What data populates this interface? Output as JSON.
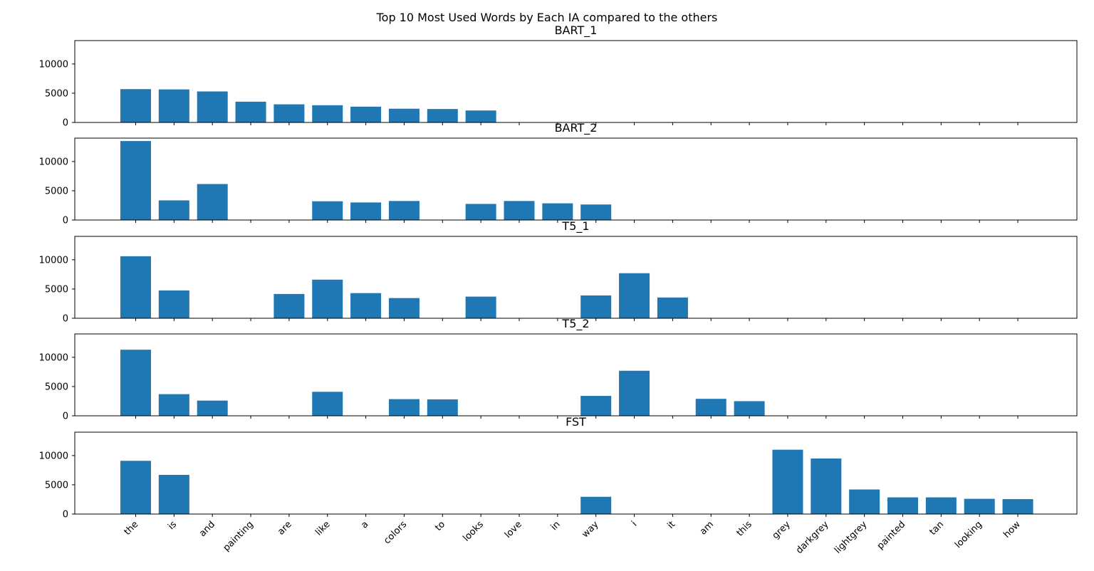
{
  "chart_data": {
    "type": "bar",
    "title": "Top 10 Most Used Words by Each IA compared to the others",
    "categories": [
      "the",
      "is",
      "and",
      "painting",
      "are",
      "like",
      "a",
      "colors",
      "to",
      "looks",
      "love",
      "in",
      "way",
      "i",
      "it",
      "am",
      "this",
      "grey",
      "darkgrey",
      "lightgrey",
      "painted",
      "tan",
      "looking",
      "how"
    ],
    "ylim": [
      0,
      14000
    ],
    "yticks": [
      0,
      5000,
      10000
    ],
    "grid": false,
    "bar_color": "#1f77b4",
    "shared_x": true,
    "subplots": [
      {
        "title": "BART_1",
        "values": [
          5700,
          5650,
          5300,
          3550,
          3100,
          2950,
          2700,
          2350,
          2300,
          2050,
          null,
          null,
          null,
          null,
          null,
          null,
          null,
          null,
          null,
          null,
          null,
          null,
          null,
          null
        ]
      },
      {
        "title": "BART_2",
        "values": [
          13500,
          3350,
          6150,
          null,
          null,
          3200,
          3000,
          3250,
          null,
          2750,
          3250,
          2850,
          2650,
          null,
          null,
          null,
          null,
          null,
          null,
          null,
          null,
          null,
          null,
          null
        ]
      },
      {
        "title": "T5_1",
        "values": [
          10600,
          4750,
          null,
          null,
          4150,
          6600,
          4300,
          3450,
          null,
          3700,
          null,
          null,
          3900,
          7700,
          3550,
          null,
          null,
          null,
          null,
          null,
          null,
          null,
          null,
          null
        ]
      },
      {
        "title": "T5_2",
        "values": [
          11300,
          3700,
          2600,
          null,
          null,
          4100,
          null,
          2850,
          2800,
          null,
          null,
          null,
          3400,
          7700,
          null,
          2900,
          2500,
          null,
          null,
          null,
          null,
          null,
          null,
          null
        ]
      },
      {
        "title": "FST",
        "values": [
          9100,
          6700,
          null,
          null,
          null,
          null,
          null,
          null,
          null,
          null,
          null,
          null,
          2950,
          null,
          null,
          null,
          null,
          11000,
          9500,
          4200,
          2850,
          2850,
          2600,
          2550
        ]
      }
    ]
  }
}
